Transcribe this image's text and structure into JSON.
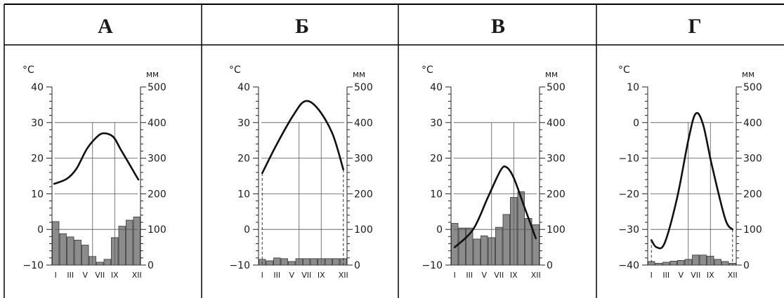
{
  "chart_data": [
    {
      "type": "climatogram",
      "title": "А",
      "temp_axis": {
        "unit": "°C",
        "ticks": [
          40,
          30,
          20,
          10,
          0,
          -10
        ],
        "min": -10,
        "max": 40
      },
      "precip_axis": {
        "unit": "мм",
        "ticks": [
          500,
          400,
          300,
          200,
          100,
          0
        ],
        "min": 0,
        "max": 500
      },
      "month_labels": [
        "I",
        "III",
        "V",
        "VII",
        "IX",
        "XII"
      ],
      "temperature": [
        12.8,
        14.2,
        17,
        22.5,
        25.8,
        27,
        26,
        22.5,
        19,
        14
      ],
      "temperature_months": [
        0.3,
        2,
        3.3,
        4.7,
        6,
        7,
        8.3,
        9.3,
        10.3,
        11.7
      ],
      "precipitation": [
        122,
        88,
        79,
        70,
        56,
        24,
        8,
        16,
        77,
        109,
        126,
        135
      ]
    },
    {
      "type": "climatogram",
      "title": "Б",
      "temp_axis": {
        "unit": "°C",
        "ticks": [
          40,
          30,
          20,
          10,
          0,
          -10
        ],
        "min": -10,
        "max": 40
      },
      "precip_axis": {
        "unit": "мм",
        "ticks": [
          500,
          400,
          300,
          200,
          100,
          0
        ],
        "min": 0,
        "max": 500
      },
      "month_labels": [
        "I",
        "III",
        "V",
        "VII",
        "IX",
        "XII"
      ],
      "temperature": [
        15.8,
        24,
        32,
        36,
        34,
        27,
        16.8
      ],
      "temperature_months": [
        0.5,
        2.5,
        4.7,
        6.3,
        8,
        10,
        11.5
      ],
      "precipitation": [
        16,
        12,
        20,
        18,
        10,
        18,
        18,
        18,
        18,
        18,
        18,
        18
      ]
    },
    {
      "type": "climatogram",
      "title": "В",
      "temp_axis": {
        "unit": "°C",
        "ticks": [
          40,
          30,
          20,
          10,
          0,
          -10
        ],
        "min": -10,
        "max": 40
      },
      "precip_axis": {
        "unit": "мм",
        "ticks": [
          500,
          400,
          300,
          200,
          100,
          0
        ],
        "min": 0,
        "max": 500
      },
      "month_labels": [
        "I",
        "III",
        "V",
        "VII",
        "IX",
        "XII"
      ],
      "temperature": [
        -5,
        0,
        9,
        16.5,
        17.5,
        14.5,
        6,
        -2.5
      ],
      "temperature_months": [
        0.5,
        3,
        5,
        6.7,
        7.5,
        8.5,
        10,
        11.5
      ],
      "precipitation": [
        117,
        104,
        104,
        73,
        82,
        77,
        106,
        142,
        190,
        206,
        131,
        113
      ]
    },
    {
      "type": "climatogram",
      "title": "Г",
      "temp_axis": {
        "unit": "°C",
        "ticks": [
          10,
          0,
          -10,
          -20,
          -30,
          -40
        ],
        "min": -40,
        "max": 10
      },
      "precip_axis": {
        "unit": "мм",
        "ticks": [
          500,
          400,
          300,
          200,
          100,
          0
        ],
        "min": 0,
        "max": 500
      },
      "month_labels": [
        "I",
        "III",
        "V",
        "VII",
        "IX",
        "XII"
      ],
      "temperature": [
        -33,
        -35,
        -33.8,
        -21,
        -5,
        2.5,
        -0.5,
        -12,
        -27,
        -30
      ],
      "temperature_months": [
        0.5,
        1.2,
        2.3,
        4,
        5.5,
        6.5,
        7.5,
        8.7,
        10.5,
        11.5
      ],
      "precipitation": [
        10,
        5,
        8,
        11,
        13,
        16,
        28,
        28,
        25,
        16,
        10,
        5
      ]
    }
  ]
}
